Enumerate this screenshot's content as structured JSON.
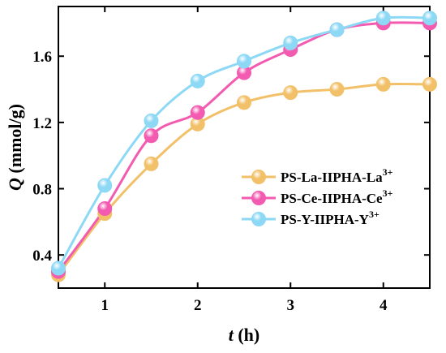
{
  "chart_data": {
    "type": "line",
    "x": [
      0.5,
      1,
      1.5,
      2,
      2.5,
      3,
      3.5,
      4,
      4.5
    ],
    "series": [
      {
        "name_main": "PS-La-IIPHA-La",
        "name_sup": "3+",
        "color": "#f2c069",
        "values": [
          0.28,
          0.65,
          0.95,
          1.19,
          1.32,
          1.38,
          1.4,
          1.43,
          1.43
        ]
      },
      {
        "name_main": "PS-Ce-IIPHA-Ce",
        "name_sup": "3+",
        "color": "#f25bb0",
        "values": [
          0.3,
          0.68,
          1.12,
          1.26,
          1.5,
          1.64,
          1.76,
          1.8,
          1.8
        ]
      },
      {
        "name_main": "PS-Y-IIPHA-Y",
        "name_sup": "3+",
        "color": "#8cd8f5",
        "values": [
          0.32,
          0.82,
          1.21,
          1.45,
          1.57,
          1.68,
          1.76,
          1.83,
          1.83
        ]
      }
    ],
    "xlabel_italic": "t",
    "xlabel_unit": " (h)",
    "ylabel_italic": "Q",
    "ylabel_unit": " (mmol/g)",
    "xlim": [
      0.5,
      4.5
    ],
    "ylim": [
      0.2,
      1.9
    ],
    "xticks": [
      1,
      2,
      3,
      4
    ],
    "yticks": [
      0.4,
      0.8,
      1.2,
      1.6
    ],
    "ytick_labels": [
      "0.4",
      "0.8",
      "1.2",
      "1.6"
    ],
    "legend_position": "center-right",
    "grid": false
  }
}
